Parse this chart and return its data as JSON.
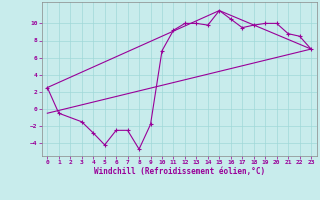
{
  "xlabel": "Windchill (Refroidissement éolien,°C)",
  "background_color": "#c8ecec",
  "line_color": "#990099",
  "xlim": [
    -0.5,
    23.5
  ],
  "ylim": [
    -5.5,
    12.5
  ],
  "xticks": [
    0,
    1,
    2,
    3,
    4,
    5,
    6,
    7,
    8,
    9,
    10,
    11,
    12,
    13,
    14,
    15,
    16,
    17,
    18,
    19,
    20,
    21,
    22,
    23
  ],
  "yticks": [
    -4,
    -2,
    0,
    2,
    4,
    6,
    8,
    10
  ],
  "grid_color": "#a0d8d8",
  "series1_x": [
    0,
    1,
    3,
    4,
    5,
    6,
    7,
    8,
    9,
    10,
    11,
    12,
    13,
    14,
    15,
    16,
    17,
    18,
    19,
    20,
    21,
    22,
    23
  ],
  "series1_y": [
    2.5,
    -0.5,
    -1.5,
    -2.8,
    -4.2,
    -2.5,
    -2.5,
    -4.7,
    -1.8,
    6.8,
    9.2,
    10.0,
    10.0,
    9.8,
    11.5,
    10.5,
    9.5,
    9.8,
    10.0,
    10.0,
    8.8,
    8.5,
    7.0
  ],
  "series2_x": [
    0,
    23
  ],
  "series2_y": [
    -0.5,
    7.0
  ],
  "series3_x": [
    0,
    15,
    23
  ],
  "series3_y": [
    2.5,
    11.5,
    7.0
  ]
}
